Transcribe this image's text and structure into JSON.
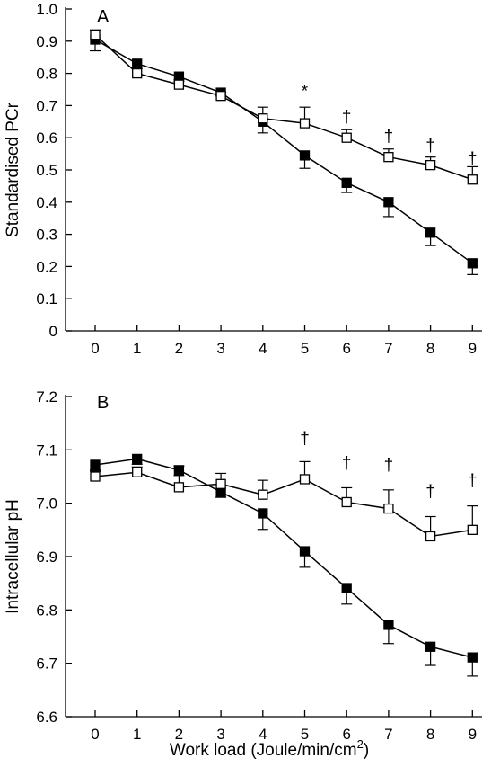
{
  "xlabel_main": "Work load (Joule/min/cm",
  "xlabel_sup": "2",
  "xlabel_close": ")",
  "chart_data": [
    {
      "panel_label": "A",
      "type": "line",
      "ylabel": "Standardised PCr",
      "ylim": [
        0,
        1.0
      ],
      "yticks": [
        "0",
        "0.1",
        "0.2",
        "0.3",
        "0.4",
        "0.5",
        "0.6",
        "0.7",
        "0.8",
        "0.9",
        "1.0"
      ],
      "x": [
        0,
        1,
        2,
        3,
        4,
        5,
        6,
        7,
        8,
        9
      ],
      "xticks": [
        "0",
        "1",
        "2",
        "3",
        "4",
        "5",
        "6",
        "7",
        "8",
        "9"
      ],
      "series": [
        {
          "marker": "filled-square",
          "values": [
            0.905,
            0.83,
            0.79,
            0.74,
            0.65,
            0.545,
            0.46,
            0.4,
            0.305,
            0.21
          ],
          "error": [
            0.035,
            0.015,
            0.015,
            0.01,
            0.035,
            0.04,
            0.03,
            0.045,
            0.04,
            0.035
          ],
          "error_dir": "down"
        },
        {
          "marker": "open-square",
          "values": [
            0.92,
            0.8,
            0.765,
            0.73,
            0.66,
            0.645,
            0.6,
            0.54,
            0.515,
            0.47
          ],
          "error": [
            0.015,
            0.015,
            0.015,
            0.01,
            0.035,
            0.05,
            0.025,
            0.025,
            0.025,
            0.04
          ],
          "error_dir": "up"
        }
      ],
      "annotations": [
        {
          "x": 5,
          "y": 0.745,
          "text": "*"
        },
        {
          "x": 6,
          "y": 0.665,
          "text": "†"
        },
        {
          "x": 7,
          "y": 0.605,
          "text": "†"
        },
        {
          "x": 8,
          "y": 0.575,
          "text": "†"
        },
        {
          "x": 9,
          "y": 0.535,
          "text": "†"
        }
      ]
    },
    {
      "panel_label": "B",
      "type": "line",
      "ylabel": "Intracellular pH",
      "ylim": [
        6.6,
        7.2
      ],
      "yticks": [
        "6.6",
        "6.7",
        "6.8",
        "6.9",
        "7.0",
        "7.1",
        "7.2"
      ],
      "x": [
        0,
        1,
        2,
        3,
        4,
        5,
        6,
        7,
        8,
        9
      ],
      "xticks": [
        "0",
        "1",
        "2",
        "3",
        "4",
        "5",
        "6",
        "7",
        "8",
        "9"
      ],
      "series": [
        {
          "marker": "filled-square",
          "values": [
            7.072,
            7.083,
            7.062,
            7.021,
            6.981,
            6.91,
            6.841,
            6.772,
            6.731,
            6.711
          ],
          "error": [
            0.01,
            0.01,
            0.01,
            0.01,
            0.03,
            0.03,
            0.03,
            0.035,
            0.035,
            0.035
          ],
          "error_dir": "down"
        },
        {
          "marker": "open-square",
          "values": [
            7.05,
            7.058,
            7.03,
            7.036,
            7.016,
            7.045,
            7.002,
            6.99,
            6.938,
            6.95
          ],
          "error": [
            0.01,
            0.01,
            0.04,
            0.02,
            0.027,
            0.033,
            0.027,
            0.035,
            0.037,
            0.045
          ],
          "error_dir": "up"
        }
      ],
      "annotations": [
        {
          "x": 5,
          "y": 7.122,
          "text": "†"
        },
        {
          "x": 6,
          "y": 7.075,
          "text": "†"
        },
        {
          "x": 7,
          "y": 7.072,
          "text": "†"
        },
        {
          "x": 8,
          "y": 7.022,
          "text": "†"
        },
        {
          "x": 9,
          "y": 7.042,
          "text": "†"
        }
      ]
    }
  ]
}
